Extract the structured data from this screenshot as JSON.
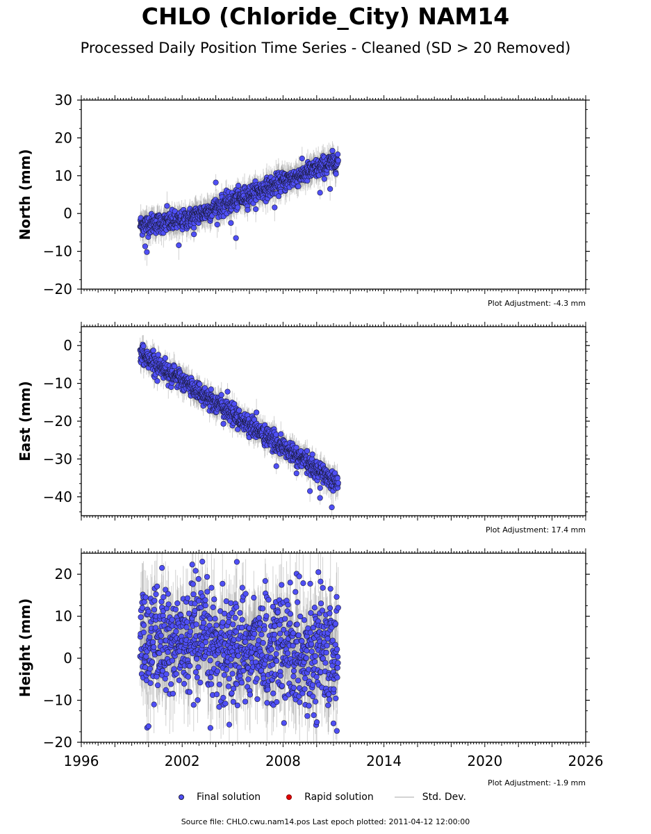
{
  "title": "CHLO (Chloride_City) NAM14",
  "subtitle": "Processed Daily Position Time Series - Cleaned (SD > 20 Removed)",
  "footer": "Source file: CHLO.cwu.nam14.pos  Last epoch plotted: 2011-04-12 12:00:00",
  "legend": {
    "final": "Final solution",
    "rapid": "Rapid solution",
    "std": "Std. Dev."
  },
  "colors": {
    "final": "#4f4ff5",
    "rapid": "#e30000",
    "std_dev": "#9a9a9a",
    "marker_edge": "#1a1a3a"
  },
  "chart_data": [
    {
      "type": "scatter",
      "panel": "north",
      "ylabel": "North (mm)",
      "ylim": [
        -20,
        30
      ],
      "yticks": [
        -20,
        -10,
        0,
        10,
        20,
        30
      ],
      "xlim": [
        1996,
        2026
      ],
      "xticks": [],
      "adjustment": "Plot Adjustment: -4.3 mm",
      "date_range": [
        1999.5,
        2011.28
      ],
      "trend": [
        [
          1999.5,
          -3.0
        ],
        [
          2002.0,
          -2.0
        ],
        [
          2011.28,
          14.0
        ]
      ],
      "noise": 1.3,
      "sigma": 2.8,
      "outliers": [
        [
          1999.9,
          -10.2
        ],
        [
          1999.8,
          -8.7
        ],
        [
          2001.8,
          -8.4
        ],
        [
          2002.7,
          -5.5
        ],
        [
          2004.0,
          8.2
        ],
        [
          2004.9,
          -2.5
        ],
        [
          2005.2,
          -6.5
        ],
        [
          2007.5,
          1.6
        ],
        [
          2010.2,
          5.5
        ],
        [
          2010.8,
          6.5
        ],
        [
          2001.1,
          2.0
        ]
      ]
    },
    {
      "type": "scatter",
      "panel": "east",
      "ylabel": "East (mm)",
      "ylim": [
        -45,
        5
      ],
      "yticks": [
        -40,
        -30,
        -20,
        -10,
        0
      ],
      "xlim": [
        1996,
        2026
      ],
      "xticks": [],
      "adjustment": "Plot Adjustment: 17.4 mm",
      "date_range": [
        1999.5,
        2011.28
      ],
      "trend": [
        [
          1999.5,
          -2.0
        ],
        [
          2011.28,
          -36.5
        ]
      ],
      "noise": 1.3,
      "sigma": 2.6,
      "outliers": [
        [
          2010.9,
          -42.8
        ],
        [
          2010.2,
          -40.3
        ],
        [
          2009.6,
          -38.5
        ],
        [
          2007.6,
          -31.9
        ],
        [
          2004.7,
          -12.2
        ],
        [
          2008.8,
          -33.8
        ]
      ]
    },
    {
      "type": "scatter",
      "panel": "height",
      "ylabel": "Height (mm)",
      "ylim": [
        -20,
        25
      ],
      "yticks": [
        -20,
        -10,
        0,
        10,
        20
      ],
      "xlim": [
        1996,
        2026
      ],
      "xticks": [
        "1996",
        "2002",
        "2008",
        "2014",
        "2020",
        "2026"
      ],
      "adjustment": "Plot Adjustment: -1.9 mm",
      "date_range": [
        1999.5,
        2011.28
      ],
      "trend": [
        [
          1999.5,
          4.0
        ],
        [
          2011.28,
          1.0
        ]
      ],
      "noise": 6.5,
      "sigma": 7.0,
      "outliers": [
        [
          2000.8,
          21.5
        ],
        [
          2002.6,
          22.3
        ],
        [
          2003.2,
          23.0
        ],
        [
          2010.1,
          20.5
        ],
        [
          2011.2,
          -17.3
        ],
        [
          2000.0,
          -16.2
        ],
        [
          2004.8,
          -15.8
        ],
        [
          2011.0,
          -15.5
        ]
      ]
    }
  ]
}
